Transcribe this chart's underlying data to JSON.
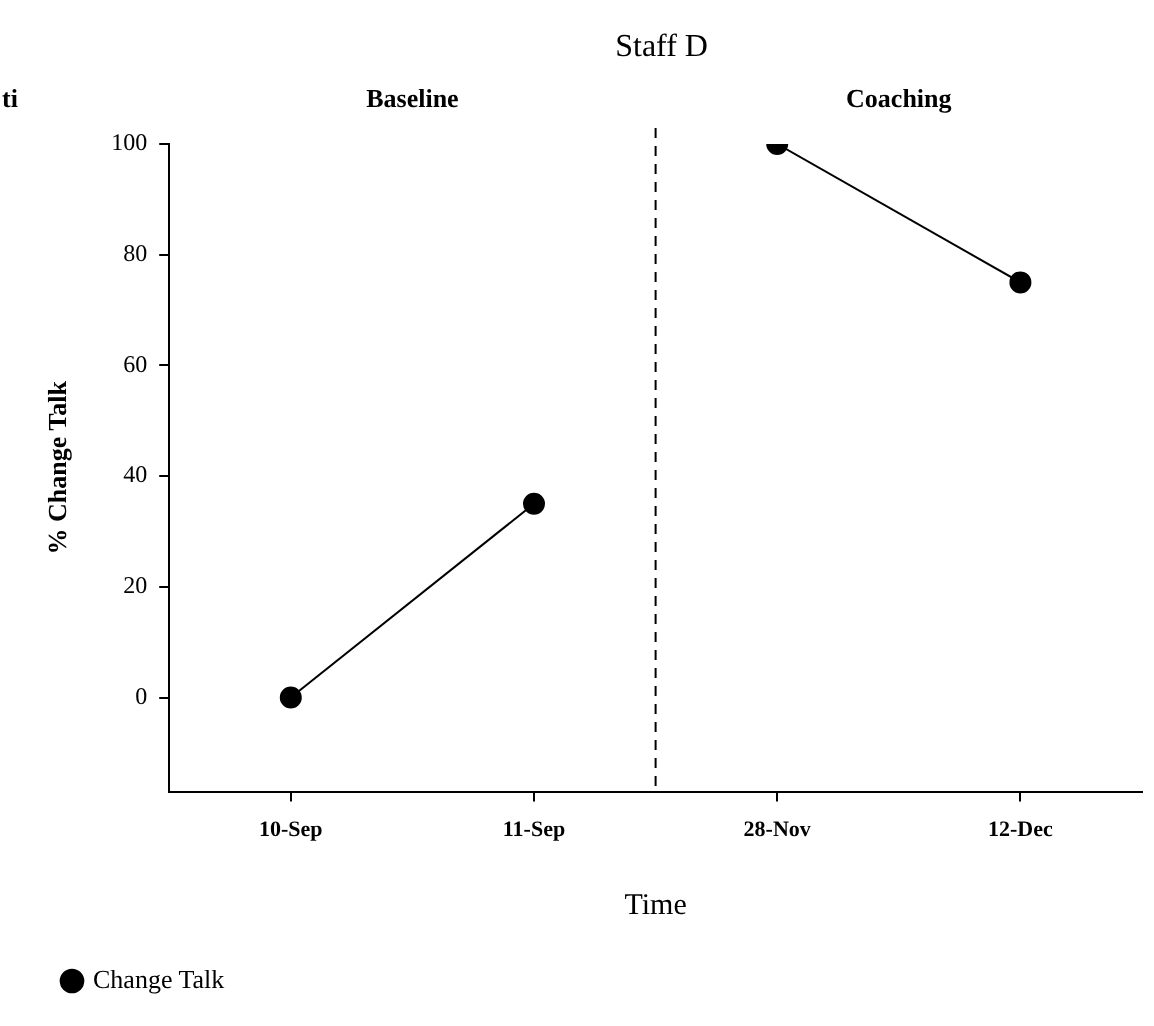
{
  "chart_data": {
    "type": "line",
    "title": "Staff D",
    "xlabel": "Time",
    "ylabel": "% Change Talk",
    "categories": [
      "10-Sep",
      "11-Sep",
      "28-Nov",
      "12-Dec"
    ],
    "ylim": [
      -17,
      100
    ],
    "yticks": [
      0,
      20,
      40,
      60,
      80,
      100
    ],
    "series": [
      {
        "name": "Change Talk",
        "color": "#000000",
        "values": [
          0,
          35,
          null,
          null
        ]
      },
      {
        "color": "#000000",
        "values": [
          null,
          null,
          100,
          75
        ]
      }
    ],
    "marker": "circle",
    "line_style": "solid",
    "legend": "bottom left",
    "annotations": [
      "ti",
      "Baseline",
      "Coaching"
    ]
  }
}
